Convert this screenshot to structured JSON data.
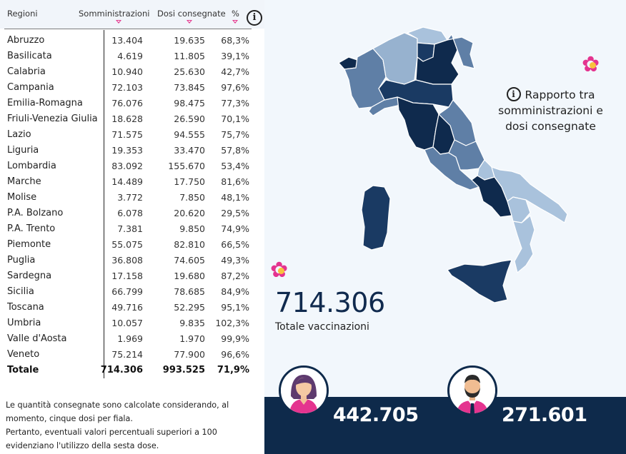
{
  "table": {
    "headers": {
      "region": "Regioni",
      "administered": "Somministrazioni",
      "delivered": "Dosi consegnate",
      "percent": "%"
    },
    "rows": [
      {
        "name": "Abruzzo",
        "administered": "13.404",
        "delivered": "19.635",
        "percent": "68,3%"
      },
      {
        "name": "Basilicata",
        "administered": "4.619",
        "delivered": "11.805",
        "percent": "39,1%"
      },
      {
        "name": "Calabria",
        "administered": "10.940",
        "delivered": "25.630",
        "percent": "42,7%"
      },
      {
        "name": "Campania",
        "administered": "72.103",
        "delivered": "73.845",
        "percent": "97,6%"
      },
      {
        "name": "Emilia-Romagna",
        "administered": "76.076",
        "delivered": "98.475",
        "percent": "77,3%"
      },
      {
        "name": "Friuli-Venezia Giulia",
        "administered": "18.628",
        "delivered": "26.590",
        "percent": "70,1%"
      },
      {
        "name": "Lazio",
        "administered": "71.575",
        "delivered": "94.555",
        "percent": "75,7%"
      },
      {
        "name": "Liguria",
        "administered": "19.353",
        "delivered": "33.470",
        "percent": "57,8%"
      },
      {
        "name": "Lombardia",
        "administered": "83.092",
        "delivered": "155.670",
        "percent": "53,4%"
      },
      {
        "name": "Marche",
        "administered": "14.489",
        "delivered": "17.750",
        "percent": "81,6%"
      },
      {
        "name": "Molise",
        "administered": "3.772",
        "delivered": "7.850",
        "percent": "48,1%"
      },
      {
        "name": "P.A. Bolzano",
        "administered": "6.078",
        "delivered": "20.620",
        "percent": "29,5%"
      },
      {
        "name": "P.A. Trento",
        "administered": "7.381",
        "delivered": "9.850",
        "percent": "74,9%"
      },
      {
        "name": "Piemonte",
        "administered": "55.075",
        "delivered": "82.810",
        "percent": "66,5%"
      },
      {
        "name": "Puglia",
        "administered": "36.808",
        "delivered": "74.605",
        "percent": "49,3%"
      },
      {
        "name": "Sardegna",
        "administered": "17.158",
        "delivered": "19.680",
        "percent": "87,2%"
      },
      {
        "name": "Sicilia",
        "administered": "66.799",
        "delivered": "78.685",
        "percent": "84,9%"
      },
      {
        "name": "Toscana",
        "administered": "49.716",
        "delivered": "52.295",
        "percent": "95,1%"
      },
      {
        "name": "Umbria",
        "administered": "10.057",
        "delivered": "9.835",
        "percent": "102,3%"
      },
      {
        "name": "Valle d'Aosta",
        "administered": "1.969",
        "delivered": "1.970",
        "percent": "99,9%"
      },
      {
        "name": "Veneto",
        "administered": "75.214",
        "delivered": "77.900",
        "percent": "96,6%"
      }
    ],
    "total": {
      "name": "Totale",
      "administered": "714.306",
      "delivered": "993.525",
      "percent": "71,9%"
    }
  },
  "footnote": {
    "line1": "Le quantità consegnate sono calcolate considerando, al",
    "line2": "momento, cinque dosi per fiala.",
    "line3": "Pertanto, eventuali valori percentuali superiori a 100",
    "line4": "evidenziano l'utilizzo della sesta dose."
  },
  "info": {
    "icon_letter": "i",
    "line1": "Rapporto tra",
    "line2": "somministrazioni e",
    "line3": "dosi consegnate"
  },
  "summary": {
    "total_value": "714.306",
    "total_label": "Totale vaccinazioni",
    "women_count": "442.705",
    "men_count": "271.601"
  },
  "colors": {
    "navy": "#0e2a4b",
    "flower": "#e4348f",
    "map_dark": "#1a3a63",
    "map_mid": "#5c7ea6",
    "map_light": "#a9c2dc"
  }
}
